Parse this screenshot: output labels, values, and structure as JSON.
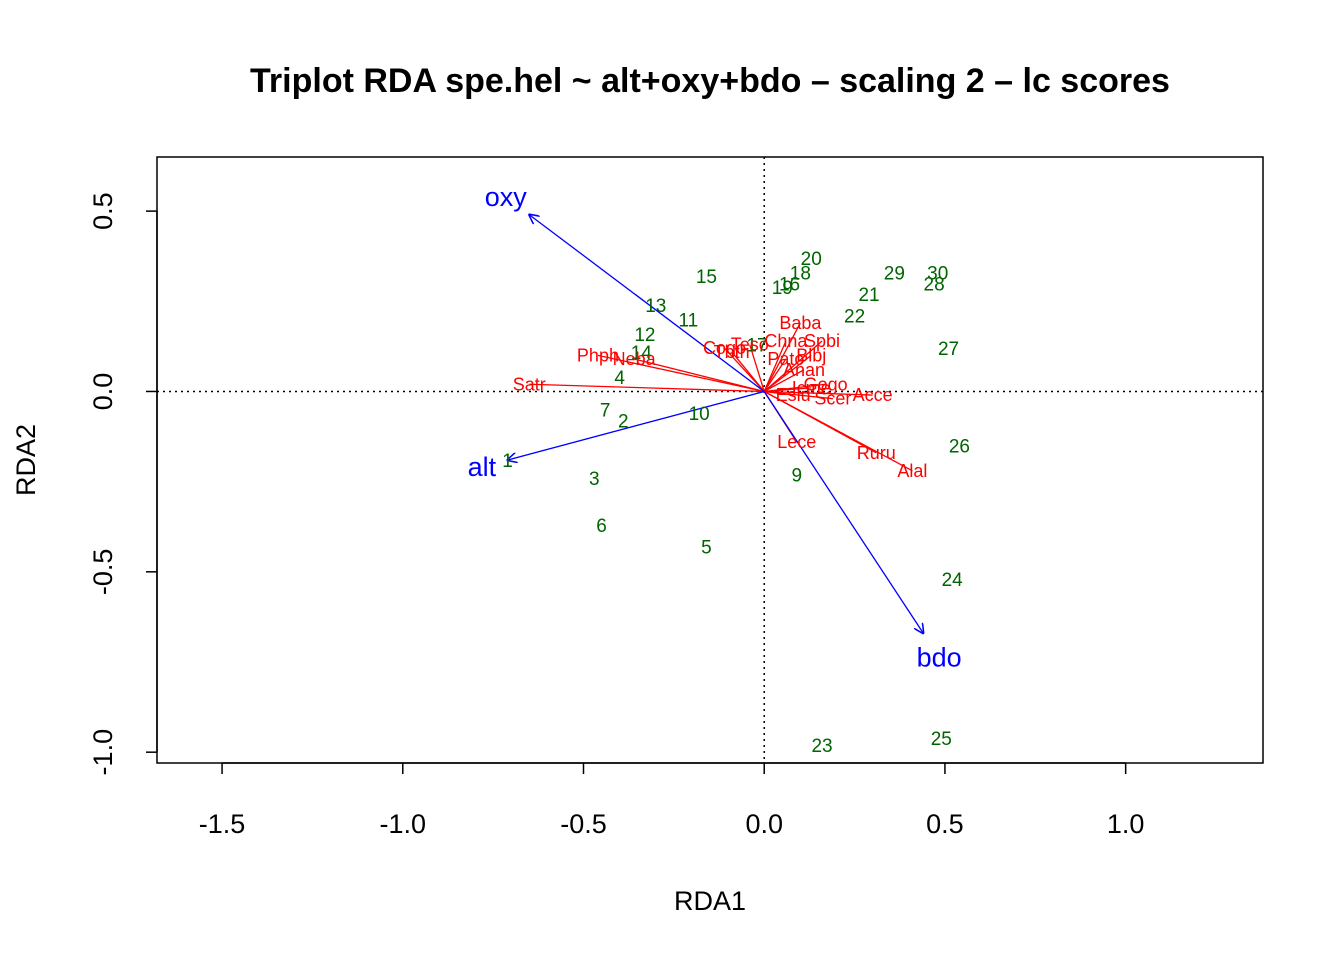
{
  "chart_data": {
    "type": "scatter",
    "title": "Triplot RDA spe.hel ~ alt+oxy+bdo – scaling 2 – lc scores",
    "xlabel": "RDA1",
    "ylabel": "RDA2",
    "xlim": [
      -1.68,
      1.38
    ],
    "ylim": [
      -1.03,
      0.65
    ],
    "x_ticks": [
      -1.5,
      -1.0,
      -0.5,
      0.0,
      0.5,
      1.0
    ],
    "x_tick_labels": [
      "-1.5",
      "-1.0",
      "-0.5",
      "0.0",
      "0.5",
      "1.0"
    ],
    "y_ticks": [
      -1.0,
      -0.5,
      0.0,
      0.5
    ],
    "y_tick_labels": [
      "-1.0",
      "-0.5",
      "0.0",
      "0.5"
    ],
    "reference_lines": {
      "x": 0,
      "y": 0,
      "style": "dotted"
    },
    "colors": {
      "sites": "#006400",
      "species": "#ff0000",
      "env": "#0000ff",
      "frame": "#000000"
    },
    "sites": [
      {
        "label": "1",
        "x": -0.71,
        "y": -0.19
      },
      {
        "label": "2",
        "x": -0.39,
        "y": -0.08
      },
      {
        "label": "3",
        "x": -0.47,
        "y": -0.24
      },
      {
        "label": "4",
        "x": -0.4,
        "y": 0.04
      },
      {
        "label": "5",
        "x": -0.16,
        "y": -0.43
      },
      {
        "label": "6",
        "x": -0.45,
        "y": -0.37
      },
      {
        "label": "7",
        "x": -0.44,
        "y": -0.05
      },
      {
        "label": "9",
        "x": 0.09,
        "y": -0.23
      },
      {
        "label": "10",
        "x": -0.18,
        "y": -0.06
      },
      {
        "label": "11",
        "x": -0.21,
        "y": 0.2
      },
      {
        "label": "12",
        "x": -0.33,
        "y": 0.16
      },
      {
        "label": "13",
        "x": -0.3,
        "y": 0.24
      },
      {
        "label": "14",
        "x": -0.34,
        "y": 0.11
      },
      {
        "label": "15",
        "x": -0.16,
        "y": 0.32
      },
      {
        "label": "16",
        "x": 0.07,
        "y": 0.3
      },
      {
        "label": "17",
        "x": -0.02,
        "y": 0.13
      },
      {
        "label": "18",
        "x": 0.1,
        "y": 0.33
      },
      {
        "label": "19",
        "x": 0.05,
        "y": 0.29
      },
      {
        "label": "20",
        "x": 0.13,
        "y": 0.37
      },
      {
        "label": "21",
        "x": 0.29,
        "y": 0.27
      },
      {
        "label": "22",
        "x": 0.25,
        "y": 0.21
      },
      {
        "label": "23",
        "x": 0.16,
        "y": -0.98
      },
      {
        "label": "24",
        "x": 0.52,
        "y": -0.52
      },
      {
        "label": "25",
        "x": 0.49,
        "y": -0.96
      },
      {
        "label": "26",
        "x": 0.54,
        "y": -0.15
      },
      {
        "label": "27",
        "x": 0.51,
        "y": 0.12
      },
      {
        "label": "28",
        "x": 0.47,
        "y": 0.3
      },
      {
        "label": "29",
        "x": 0.36,
        "y": 0.33
      },
      {
        "label": "30",
        "x": 0.48,
        "y": 0.33
      }
    ],
    "species": [
      {
        "label": "Satr",
        "x": -0.65,
        "y": 0.02
      },
      {
        "label": "Phph",
        "x": -0.46,
        "y": 0.1
      },
      {
        "label": "Neba",
        "x": -0.36,
        "y": 0.09
      },
      {
        "label": "Cogo",
        "x": -0.11,
        "y": 0.12
      },
      {
        "label": "Teso",
        "x": -0.04,
        "y": 0.13
      },
      {
        "label": "Thth",
        "x": -0.09,
        "y": 0.11
      },
      {
        "label": "Baba",
        "x": 0.1,
        "y": 0.19
      },
      {
        "label": "Chna",
        "x": 0.06,
        "y": 0.14
      },
      {
        "label": "Spbi",
        "x": 0.16,
        "y": 0.14
      },
      {
        "label": "Blbj",
        "x": 0.13,
        "y": 0.1
      },
      {
        "label": "Pato",
        "x": 0.06,
        "y": 0.09
      },
      {
        "label": "Anan",
        "x": 0.11,
        "y": 0.06
      },
      {
        "label": "Gogo",
        "x": 0.17,
        "y": 0.02
      },
      {
        "label": "Icme",
        "x": 0.13,
        "y": 0.01
      },
      {
        "label": "Acce",
        "x": 0.3,
        "y": -0.01
      },
      {
        "label": "Eslu",
        "x": 0.08,
        "y": -0.01
      },
      {
        "label": "Scer",
        "x": 0.19,
        "y": -0.02
      },
      {
        "label": "Lece",
        "x": 0.09,
        "y": -0.14
      },
      {
        "label": "Ruru",
        "x": 0.31,
        "y": -0.17
      },
      {
        "label": "Alal",
        "x": 0.41,
        "y": -0.22
      }
    ],
    "environment": [
      {
        "label": "oxy",
        "x": -0.65,
        "y": 0.49
      },
      {
        "label": "alt",
        "x": -0.71,
        "y": -0.19
      },
      {
        "label": "bdo",
        "x": 0.44,
        "y": -0.67
      }
    ]
  }
}
